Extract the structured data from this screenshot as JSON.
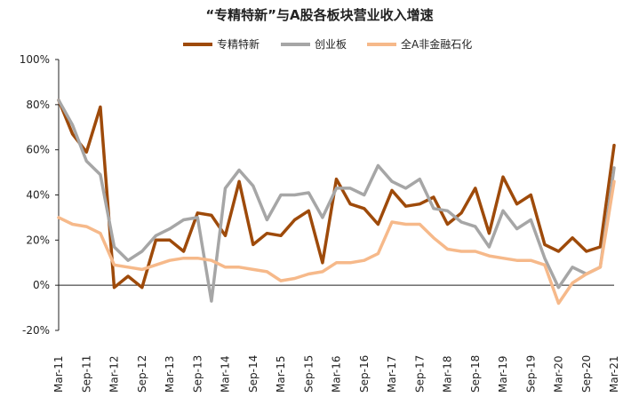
{
  "chart_data": {
    "type": "line",
    "title": "“专精特新”与A股各板块营业收入增速",
    "xlabel": "",
    "ylabel": "",
    "ylim": [
      -20,
      100
    ],
    "yticks": [
      "-20%",
      "0%",
      "20%",
      "40%",
      "60%",
      "80%",
      "100%"
    ],
    "xticks": [
      "Mar-11",
      "Sep-11",
      "Mar-12",
      "Sep-12",
      "Mar-13",
      "Sep-13",
      "Mar-14",
      "Sep-14",
      "Mar-15",
      "Sep-15",
      "Mar-16",
      "Sep-16",
      "Mar-17",
      "Sep-17",
      "Mar-18",
      "Sep-18",
      "Mar-19",
      "Sep-19",
      "Mar-20",
      "Sep-20",
      "Mar-21"
    ],
    "legend_position": "top-center",
    "grid": false,
    "series": [
      {
        "name": "专精特新",
        "color": "#9e4a0a",
        "values": [
          82,
          67,
          59,
          79,
          -1,
          4,
          -1,
          20,
          20,
          15,
          32,
          31,
          22,
          46,
          18,
          23,
          22,
          29,
          33,
          10,
          47,
          36,
          34,
          27,
          42,
          35,
          36,
          39,
          27,
          32,
          43,
          23,
          48,
          36,
          40,
          18,
          15,
          21,
          15,
          17,
          62
        ]
      },
      {
        "name": "创业板",
        "color": "#a6a6a6",
        "values": [
          82,
          71,
          55,
          49,
          17,
          11,
          15,
          22,
          25,
          29,
          30,
          -7,
          43,
          51,
          44,
          29,
          40,
          40,
          41,
          30,
          43,
          43,
          40,
          53,
          46,
          43,
          47,
          34,
          33,
          28,
          26,
          17,
          33,
          25,
          29,
          12,
          -1,
          8,
          5,
          8,
          52
        ]
      },
      {
        "name": "全A非金融石化",
        "color": "#f6b98a",
        "values": [
          30,
          27,
          26,
          23,
          9,
          8,
          7,
          9,
          11,
          12,
          12,
          11,
          8,
          8,
          7,
          6,
          2,
          3,
          5,
          6,
          10,
          10,
          11,
          14,
          28,
          27,
          27,
          21,
          16,
          15,
          15,
          13,
          12,
          11,
          11,
          9,
          -8,
          1,
          5,
          8,
          46
        ]
      }
    ]
  }
}
